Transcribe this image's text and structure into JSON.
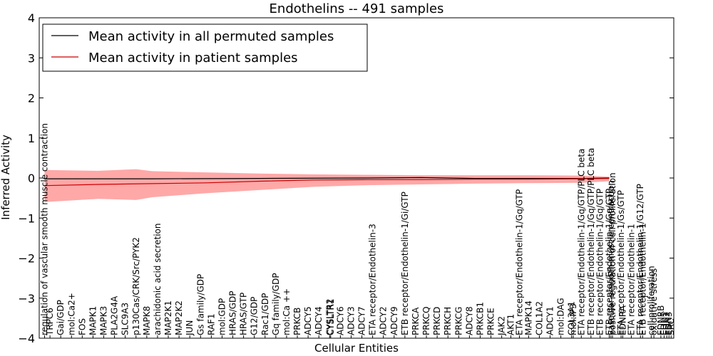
{
  "chart_data": {
    "type": "line",
    "title": "Endothelins -- 491 samples",
    "xlabel": "Cellular Entities",
    "ylabel": "Inferred Activity",
    "ylim": [
      -4,
      4
    ],
    "yticks": [
      "−4",
      "−3",
      "−2",
      "−1",
      "0",
      "1",
      "2",
      "3",
      "4"
    ],
    "ytick_values": [
      -4,
      -3,
      -2,
      -1,
      0,
      1,
      2,
      3,
      4
    ],
    "legend": {
      "placement": "top-left",
      "entries": [
        {
          "label": "Mean activity in all permuted samples",
          "color": "#000000"
        },
        {
          "label": "Mean activity in patient samples",
          "color": "#ff0000"
        }
      ]
    },
    "band_color": "#ff9999",
    "series": [
      {
        "name": "Mean activity in all permuted samples",
        "x": [
          0,
          20,
          40,
          60,
          70,
          80,
          89,
          100,
          105
        ],
        "values": [
          -0.02,
          -0.02,
          -0.01,
          0.0,
          0.01,
          -0.01,
          -0.01,
          -0.01,
          0.0
        ]
      },
      {
        "name": "Mean activity in patient samples",
        "x": [
          0,
          10,
          20,
          30,
          40,
          50,
          60,
          70,
          80,
          89,
          100,
          105
        ],
        "values": [
          -0.19,
          -0.16,
          -0.14,
          -0.12,
          -0.08,
          -0.05,
          -0.04,
          -0.04,
          -0.03,
          -0.03,
          -0.02,
          -0.01
        ]
      },
      {
        "name": "patient band upper",
        "x": [
          0,
          10,
          17,
          20,
          30,
          40,
          50,
          60,
          70,
          80,
          89,
          100,
          105
        ],
        "values": [
          0.2,
          0.18,
          0.22,
          0.17,
          0.14,
          0.11,
          0.09,
          0.08,
          0.07,
          0.07,
          0.07,
          0.06,
          0.03
        ]
      },
      {
        "name": "patient band lower",
        "x": [
          0,
          10,
          17,
          20,
          30,
          40,
          50,
          60,
          70,
          80,
          89,
          100,
          105
        ],
        "values": [
          -0.6,
          -0.52,
          -0.55,
          -0.48,
          -0.38,
          -0.3,
          -0.22,
          -0.18,
          -0.16,
          -0.14,
          -0.13,
          -0.12,
          -0.08
        ]
      }
    ],
    "entity_labels": [
      {
        "x": 0,
        "text": "regulation of vascular smooth muscle contraction"
      },
      {
        "x": 1,
        "text": "TRPC6"
      },
      {
        "x": 3,
        "text": "Gai/GDP"
      },
      {
        "x": 5,
        "text": "mol:Ca2+"
      },
      {
        "x": 7,
        "text": "FOS"
      },
      {
        "x": 9,
        "text": "MAPK1"
      },
      {
        "x": 11,
        "text": "MAPK3"
      },
      {
        "x": 13,
        "text": "PLA2G4A"
      },
      {
        "x": 15,
        "text": "SLC9A3"
      },
      {
        "x": 17,
        "text": "p130Cas/CRK/Src/PYK2"
      },
      {
        "x": 19,
        "text": "MAPK8"
      },
      {
        "x": 21,
        "text": "arachidonic acid secretion"
      },
      {
        "x": 23,
        "text": "MAP2K1"
      },
      {
        "x": 25,
        "text": "MAP2K2"
      },
      {
        "x": 27,
        "text": "JUN"
      },
      {
        "x": 29,
        "text": "Gs family/GDP"
      },
      {
        "x": 31,
        "text": "RAF1"
      },
      {
        "x": 33,
        "text": "mol:GDP"
      },
      {
        "x": 35,
        "text": "HRAS/GDP"
      },
      {
        "x": 37,
        "text": "HRAS/GTP"
      },
      {
        "x": 39,
        "text": "G12/GDP"
      },
      {
        "x": 41,
        "text": "Rac1/GDP"
      },
      {
        "x": 43,
        "text": "Gq family/GDP"
      },
      {
        "x": 45,
        "text": "mol:Ca ++"
      },
      {
        "x": 47,
        "text": "PRKCB"
      },
      {
        "x": 49,
        "text": "ADCY5"
      },
      {
        "x": 51,
        "text": "ADCY4"
      },
      {
        "x": 53,
        "text": "CYSLTR2"
      },
      {
        "x": 53.2,
        "text": "CYSLTR1"
      },
      {
        "x": 55,
        "text": "ADCY6"
      },
      {
        "x": 57,
        "text": "ADCY3"
      },
      {
        "x": 59,
        "text": "ADCY7"
      },
      {
        "x": 61,
        "text": "ETA receptor/Endothelin-3"
      },
      {
        "x": 63,
        "text": "ADCY2"
      },
      {
        "x": 65,
        "text": "ADCY9"
      },
      {
        "x": 67,
        "text": "ETB receptor/Endothelin-1/Gi/GTP"
      },
      {
        "x": 69,
        "text": "PRKCA"
      },
      {
        "x": 71,
        "text": "PRKCQ"
      },
      {
        "x": 73,
        "text": "PRKCD"
      },
      {
        "x": 75,
        "text": "PRKCH"
      },
      {
        "x": 77,
        "text": "PRKCG"
      },
      {
        "x": 79,
        "text": "ADCY8"
      },
      {
        "x": 81,
        "text": "PRKCB1"
      },
      {
        "x": 83,
        "text": "PRKCE"
      },
      {
        "x": 85,
        "text": "JAK2"
      },
      {
        "x": 86.7,
        "text": "AKT1"
      },
      {
        "x": 88.3,
        "text": "ETA receptor/Endothelin-1/Gq/GTP"
      },
      {
        "x": 90,
        "text": "MAPK14"
      },
      {
        "x": 92,
        "text": "COL1A2"
      },
      {
        "x": 94,
        "text": "ADCY1"
      },
      {
        "x": 96,
        "text": "mol:DAG"
      },
      {
        "x": 98,
        "text": "COL3A1"
      },
      {
        "x": 98.3,
        "text": "mol:IP3"
      },
      {
        "x": 99.8,
        "text": "ETA receptor/Endothelin-1/Gq/GTP/PLC beta"
      },
      {
        "x": 101.6,
        "text": "ETB receptor/Endothelin-1/Gq/GTP/PLC beta"
      },
      {
        "x": 103.3,
        "text": "ETB receptor/Endothelin-1/Gq/GTP"
      },
      {
        "x": 105,
        "text": "ETB receptor/Endothelin-1/Gq/GTP"
      },
      {
        "x": 105.3,
        "text": "vascular smooth muscle contraction"
      },
      {
        "x": 105.6,
        "text": "positive regulation of cell proliferation"
      },
      {
        "x": 107.2,
        "text": "ETA receptor/Endothelin-1/Gs/GTP"
      },
      {
        "x": 107.5,
        "text": "EDNRA"
      },
      {
        "x": 109.1,
        "text": "ETA receptor/Endothelin-1"
      },
      {
        "x": 110.8,
        "text": "ETA receptor/Endothelin-1/G12/GTP"
      },
      {
        "x": 111.2,
        "text": "ETB receptor/Endothelin-1"
      },
      {
        "x": 112.8,
        "text": "cell proliferation"
      },
      {
        "x": 113.3,
        "text": "oxidative stress"
      },
      {
        "x": 114.6,
        "text": "EDNRB"
      },
      {
        "x": 115.2,
        "text": "EDN1"
      },
      {
        "x": 115.7,
        "text": "EDN2"
      },
      {
        "x": 116.1,
        "text": "EDN3"
      },
      {
        "x": 116.5,
        "text": "SRC"
      }
    ]
  }
}
